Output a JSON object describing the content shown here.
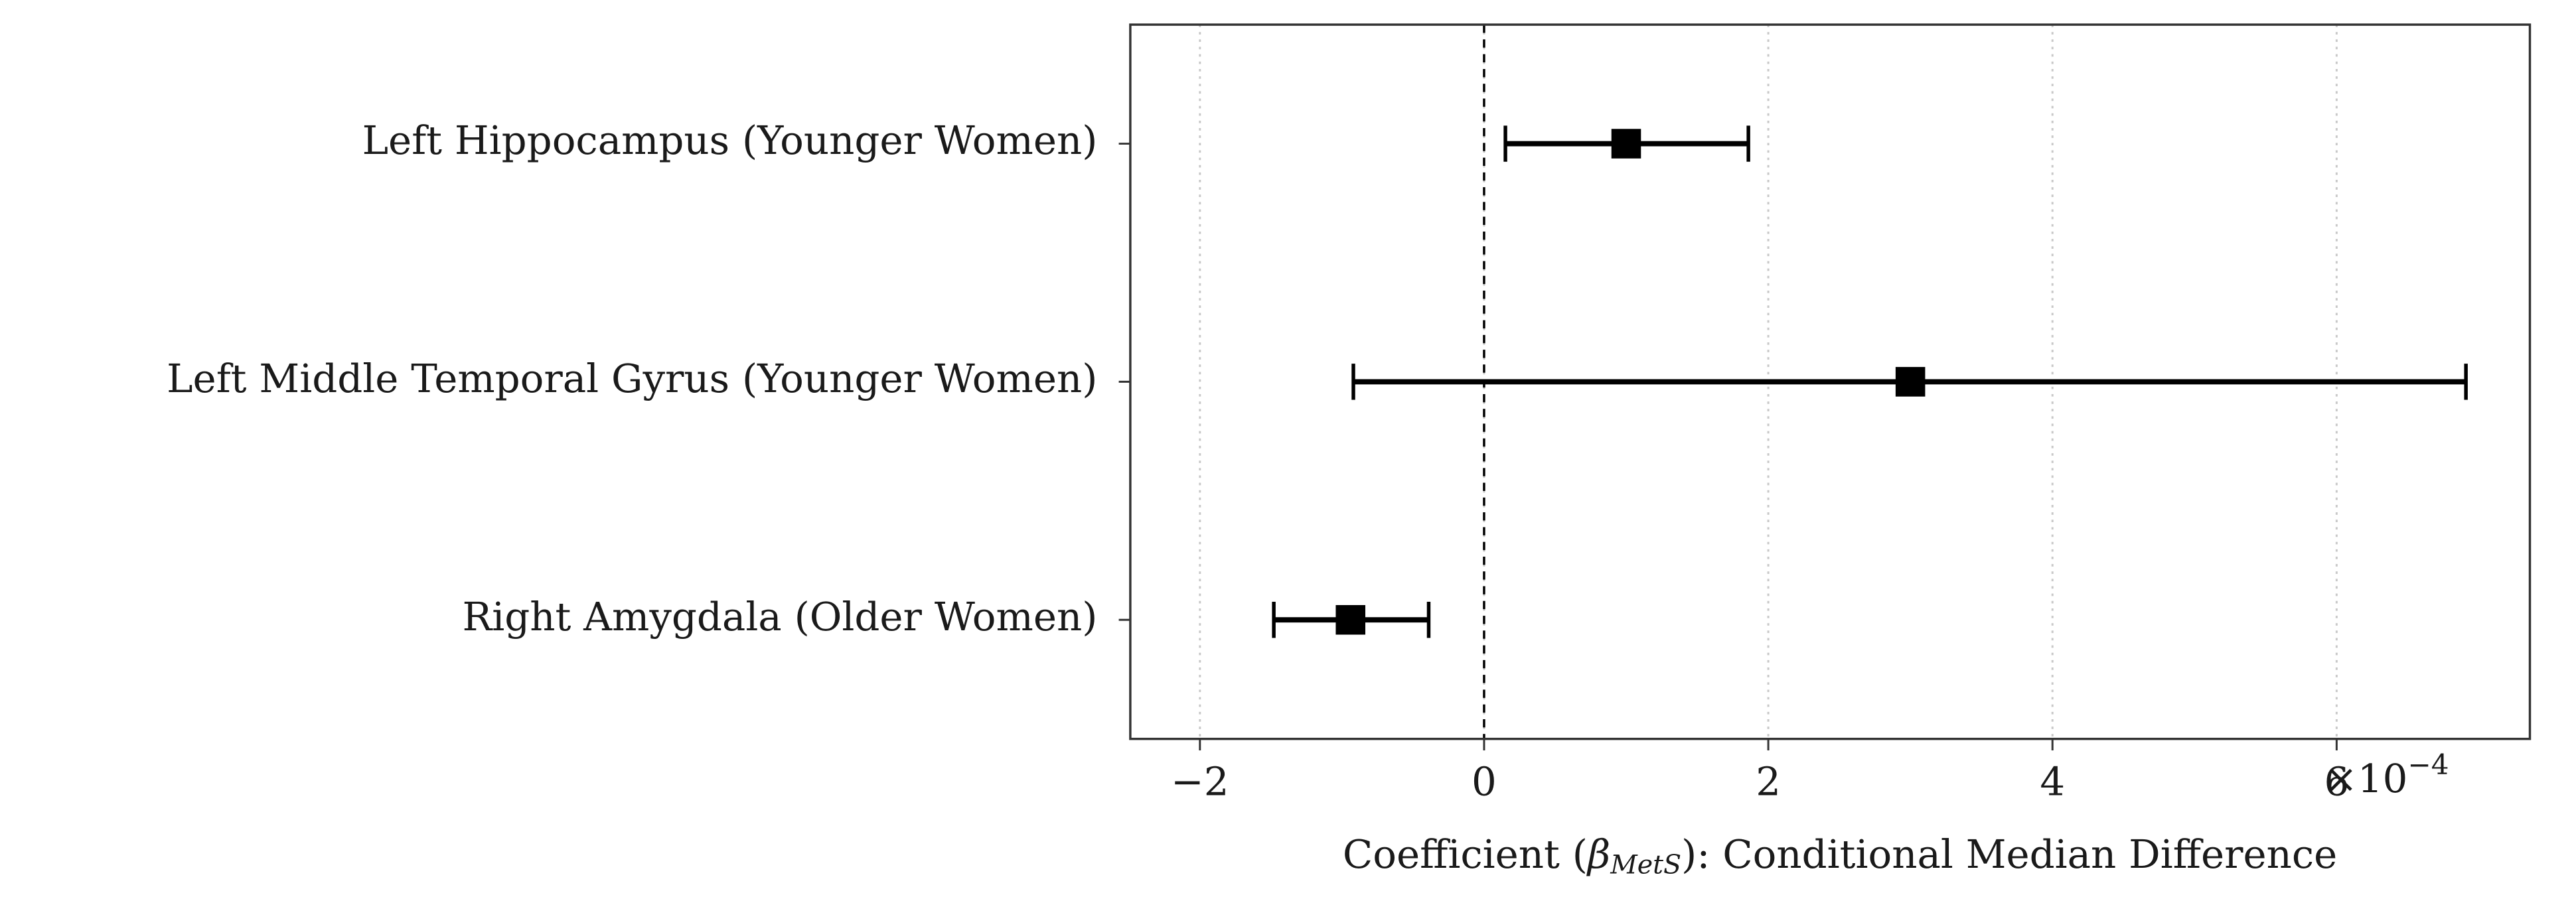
{
  "chart_data": {
    "type": "forest",
    "categories": [
      "Left Hippocampus (Younger Women)",
      "Left Middle Temporal Gyrus (Younger Women)",
      "Right Amygdala (Older Women)"
    ],
    "series": [
      {
        "color": "#000000",
        "values": [
          1.0,
          3.0,
          -0.94
        ],
        "lower": [
          0.15,
          -0.92,
          -1.48
        ],
        "upper": [
          1.86,
          6.91,
          -0.39
        ]
      }
    ],
    "xlim": [
      -2.49,
      7.36
    ],
    "xticks": [
      {
        "value": -2,
        "label": "−2"
      },
      0,
      2,
      4,
      6
    ],
    "x_offset": {
      "base": "×10",
      "exponent": "−4"
    },
    "xlabel": [
      "Coefficient (",
      "β",
      "MetS",
      "): Conditional Median Difference"
    ],
    "vline": 0,
    "grid": true
  }
}
